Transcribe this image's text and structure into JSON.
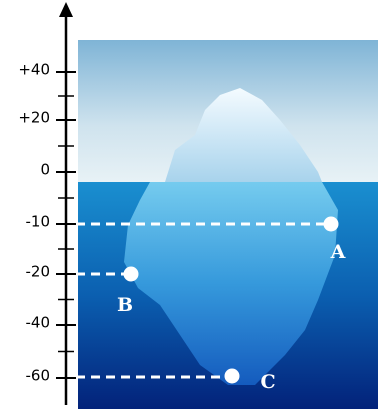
{
  "axis": {
    "ticks": [
      "+40",
      "+20",
      "0",
      "-10",
      "-20",
      "-40",
      "-60"
    ]
  },
  "points": [
    {
      "label": "A"
    },
    {
      "label": "B"
    },
    {
      "label": "C"
    }
  ]
}
